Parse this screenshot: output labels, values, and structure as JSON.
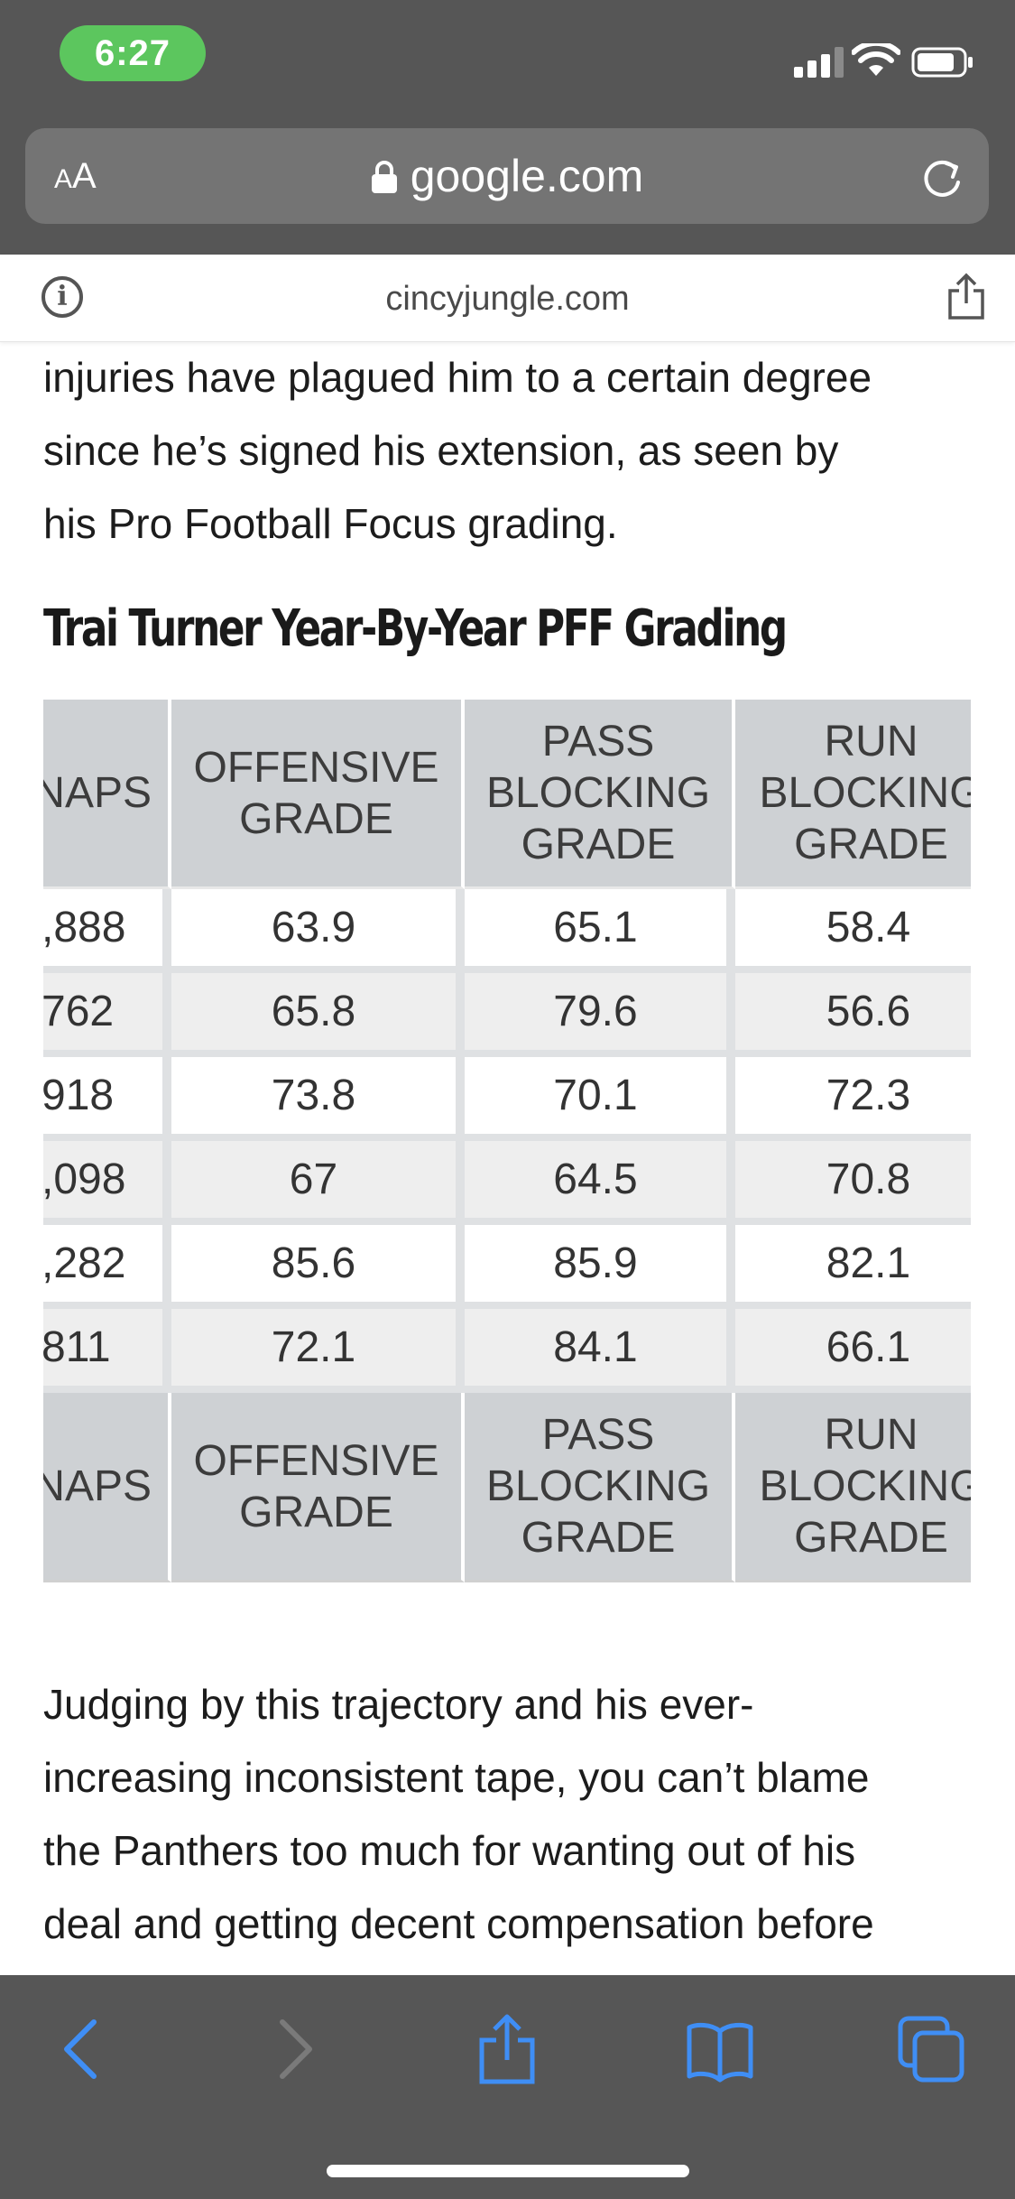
{
  "status_bar": {
    "time": "6:27"
  },
  "url_bar": {
    "aa_label_small": "A",
    "aa_label_large": "A",
    "domain": "google.com"
  },
  "site_bar": {
    "domain": "cincyjungle.com"
  },
  "article": {
    "intro_lines": [
      "injuries have plagued him to a certain degree",
      "since he’s signed his extension, as seen by",
      "his Pro Football Focus grading."
    ],
    "table_heading": "Trai Turner Year-By-Year PFF Grading",
    "table": {
      "header_lines": [
        [
          "NAPS"
        ],
        [
          "OFFENSIVE",
          "GRADE"
        ],
        [
          "PASS",
          "BLOCKING",
          "GRADE"
        ],
        [
          "RUN",
          "BLOCKING",
          "GRADE"
        ]
      ],
      "rows": [
        [
          ",888",
          "63.9",
          "65.1",
          "58.4"
        ],
        [
          "762",
          "65.8",
          "79.6",
          "56.6"
        ],
        [
          "918",
          "73.8",
          "70.1",
          "72.3"
        ],
        [
          ",098",
          "67",
          "64.5",
          "70.8"
        ],
        [
          ",282",
          "85.6",
          "85.9",
          "82.1"
        ],
        [
          "811",
          "72.1",
          "84.1",
          "66.1"
        ]
      ]
    },
    "outro_lines": [
      "Judging by this trajectory and his ever-",
      "increasing inconsistent tape, you can’t blame",
      "the Panthers too much for wanting out of his",
      "deal and getting decent compensation before"
    ]
  },
  "toolbar": {
    "icons": [
      "back-icon",
      "forward-icon",
      "share-icon",
      "bookmarks-icon",
      "tabs-icon"
    ],
    "active_color": "#3f8ef5",
    "disabled_color": "#7a7a7a"
  },
  "colors": {
    "chrome": "#565656",
    "url_bar": "#747474",
    "time_pill": "#5cc65e",
    "table_header": "#ced1d4"
  }
}
